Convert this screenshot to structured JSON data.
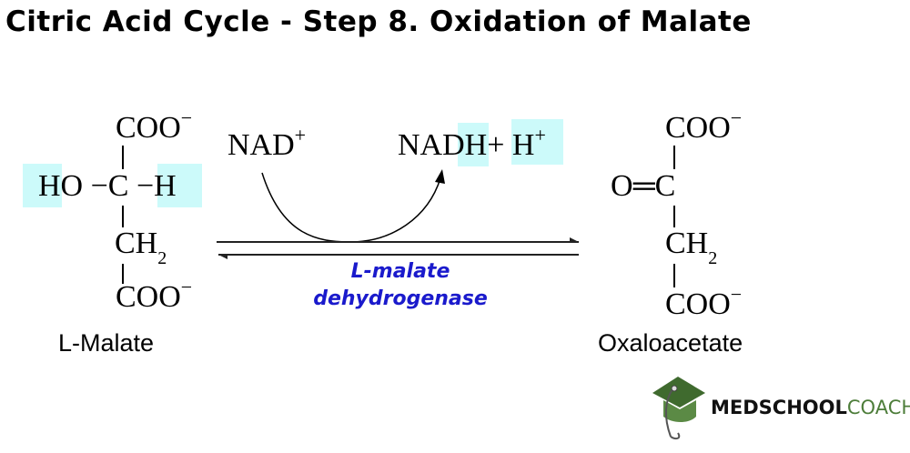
{
  "title": "Citric Acid Cycle - Step 8. Oxidation of Malate",
  "reactant": {
    "name": "L-Malate",
    "top_group": "COO",
    "charge": "−",
    "left_group": "HO",
    "center": "C",
    "right_group": "H",
    "bond": "−",
    "middle_group": "CH",
    "subscript": "2",
    "bottom_group": "COO"
  },
  "product": {
    "name": "Oxaloacetate",
    "top_group": "COO",
    "charge": "−",
    "left_group": "O",
    "double_bond": "═",
    "center": "C",
    "middle_group": "CH",
    "subscript": "2",
    "bottom_group": "COO"
  },
  "cofactor_in": {
    "text": "NAD",
    "charge": "+"
  },
  "cofactor_out": {
    "text_a": "NAD",
    "text_b": "H",
    "plus": "+",
    "proton": "H",
    "charge": "+"
  },
  "enzyme": {
    "line1": "L-malate",
    "line2": "dehydrogenase"
  },
  "logo": {
    "bold": "MEDSCHOOL",
    "light": "COACH"
  },
  "colors": {
    "highlight": "#ccfafa",
    "enzyme": "#1a1acc",
    "logo_green": "#4d7d3a"
  }
}
